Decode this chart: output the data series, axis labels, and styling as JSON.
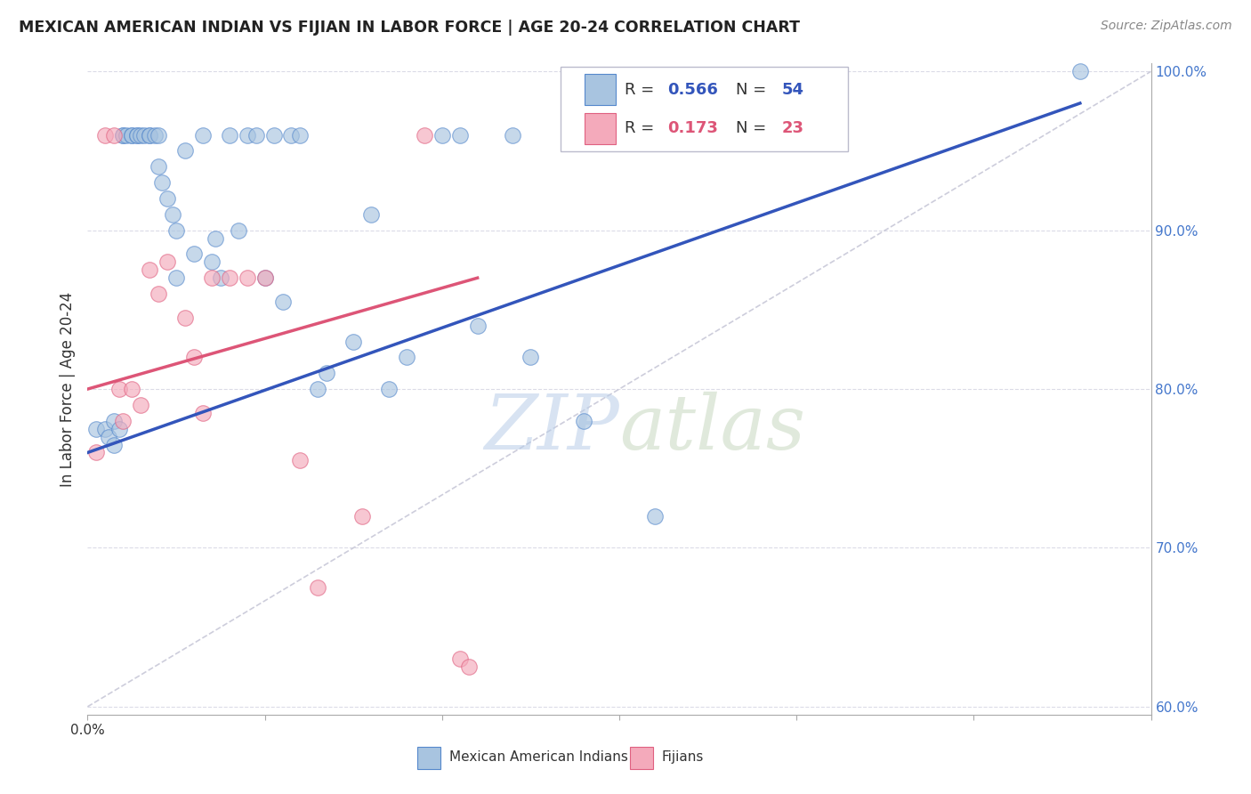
{
  "title": "MEXICAN AMERICAN INDIAN VS FIJIAN IN LABOR FORCE | AGE 20-24 CORRELATION CHART",
  "source_text": "Source: ZipAtlas.com",
  "ylabel": "In Labor Force | Age 20-24",
  "watermark": "ZIPatlas",
  "xlim": [
    0.0,
    0.6
  ],
  "ylim": [
    0.595,
    1.005
  ],
  "right_yticks": [
    0.6,
    0.7,
    0.8,
    0.9,
    1.0
  ],
  "right_yticklabels": [
    "60.0%",
    "70.0%",
    "80.0%",
    "90.0%",
    "100.0%"
  ],
  "blue_R": 0.566,
  "blue_N": 54,
  "pink_R": 0.173,
  "pink_N": 23,
  "blue_color": "#A8C4E0",
  "pink_color": "#F4AABB",
  "blue_edge_color": "#5588CC",
  "pink_edge_color": "#E06080",
  "blue_line_color": "#3355BB",
  "pink_line_color": "#DD5577",
  "diag_color": "#C8C8D8",
  "blue_scatter_x": [
    0.005,
    0.01,
    0.012,
    0.015,
    0.015,
    0.018,
    0.02,
    0.02,
    0.022,
    0.025,
    0.025,
    0.028,
    0.028,
    0.03,
    0.032,
    0.035,
    0.035,
    0.038,
    0.04,
    0.04,
    0.042,
    0.045,
    0.048,
    0.05,
    0.05,
    0.055,
    0.06,
    0.065,
    0.07,
    0.072,
    0.075,
    0.08,
    0.085,
    0.09,
    0.095,
    0.1,
    0.105,
    0.11,
    0.115,
    0.12,
    0.13,
    0.135,
    0.15,
    0.16,
    0.17,
    0.18,
    0.2,
    0.21,
    0.22,
    0.24,
    0.25,
    0.28,
    0.32,
    0.56
  ],
  "blue_scatter_y": [
    0.775,
    0.775,
    0.77,
    0.78,
    0.765,
    0.775,
    0.96,
    0.96,
    0.96,
    0.96,
    0.96,
    0.96,
    0.96,
    0.96,
    0.96,
    0.96,
    0.96,
    0.96,
    0.96,
    0.94,
    0.93,
    0.92,
    0.91,
    0.9,
    0.87,
    0.95,
    0.885,
    0.96,
    0.88,
    0.895,
    0.87,
    0.96,
    0.9,
    0.96,
    0.96,
    0.87,
    0.96,
    0.855,
    0.96,
    0.96,
    0.8,
    0.81,
    0.83,
    0.91,
    0.8,
    0.82,
    0.96,
    0.96,
    0.84,
    0.96,
    0.82,
    0.78,
    0.72,
    1.0
  ],
  "pink_scatter_x": [
    0.005,
    0.01,
    0.015,
    0.018,
    0.02,
    0.025,
    0.03,
    0.035,
    0.04,
    0.045,
    0.055,
    0.06,
    0.065,
    0.07,
    0.08,
    0.09,
    0.1,
    0.12,
    0.13,
    0.155,
    0.19,
    0.21,
    0.215
  ],
  "pink_scatter_y": [
    0.76,
    0.96,
    0.96,
    0.8,
    0.78,
    0.8,
    0.79,
    0.875,
    0.86,
    0.88,
    0.845,
    0.82,
    0.785,
    0.87,
    0.87,
    0.87,
    0.87,
    0.755,
    0.675,
    0.72,
    0.96,
    0.63,
    0.625
  ],
  "blue_line_x": [
    0.0,
    0.56
  ],
  "blue_line_y": [
    0.76,
    0.98
  ],
  "pink_line_x": [
    0.0,
    0.22
  ],
  "pink_line_y": [
    0.8,
    0.87
  ],
  "diag_line_x": [
    0.0,
    0.6
  ],
  "diag_line_y": [
    0.6,
    1.0
  ]
}
